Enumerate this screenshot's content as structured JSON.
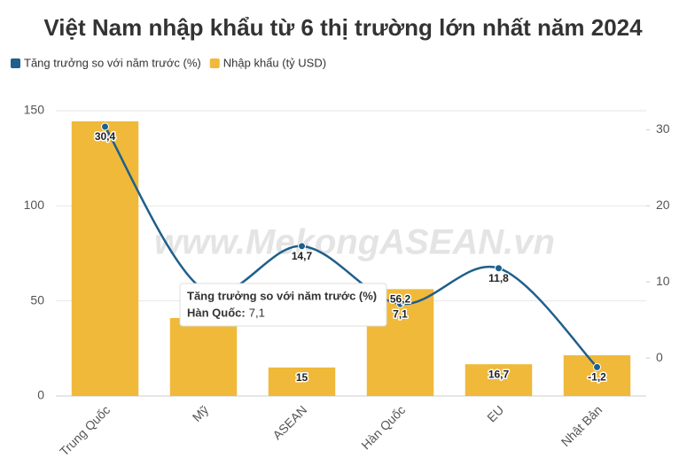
{
  "chart_data": {
    "type": "bar",
    "title": "Việt Nam nhập khẩu từ 6 thị trường lớn nhất năm 2024",
    "watermark": "www.MekongASEAN.vn",
    "categories": [
      "Trung Quốc",
      "Mỹ",
      "ASEAN",
      "Hàn Quốc",
      "EU",
      "Nhật Bản"
    ],
    "series": [
      {
        "name": "Tăng trưởng so với năm trước (%)",
        "type": "line",
        "axis": "y2",
        "color": "#1f5f8b",
        "values": [
          30.4,
          9,
          14.7,
          7.1,
          11.8,
          -1.2
        ],
        "value_labels": [
          "30,4",
          null,
          "14,7",
          "7,1",
          "11,8",
          "-1,2"
        ]
      },
      {
        "name": "Nhập khẩu (tỷ USD)",
        "type": "bar",
        "color": "#f0b93a",
        "values": [
          144.4,
          41,
          15,
          56.2,
          16.7,
          21.4
        ],
        "value_labels": [
          null,
          null,
          "15",
          "56,2",
          "16,7",
          null
        ]
      }
    ],
    "ylim": [
      0,
      160
    ],
    "yticks": [
      0,
      50,
      100,
      150
    ],
    "y2lim": [
      -5,
      35
    ],
    "y2ticks": [
      0,
      10,
      20,
      30
    ],
    "grid": true,
    "legend": "top-left",
    "tooltip": {
      "title": "Tăng trưởng so với năm trước (%)",
      "label": "Hàn Quốc:",
      "value": "7,1"
    }
  }
}
